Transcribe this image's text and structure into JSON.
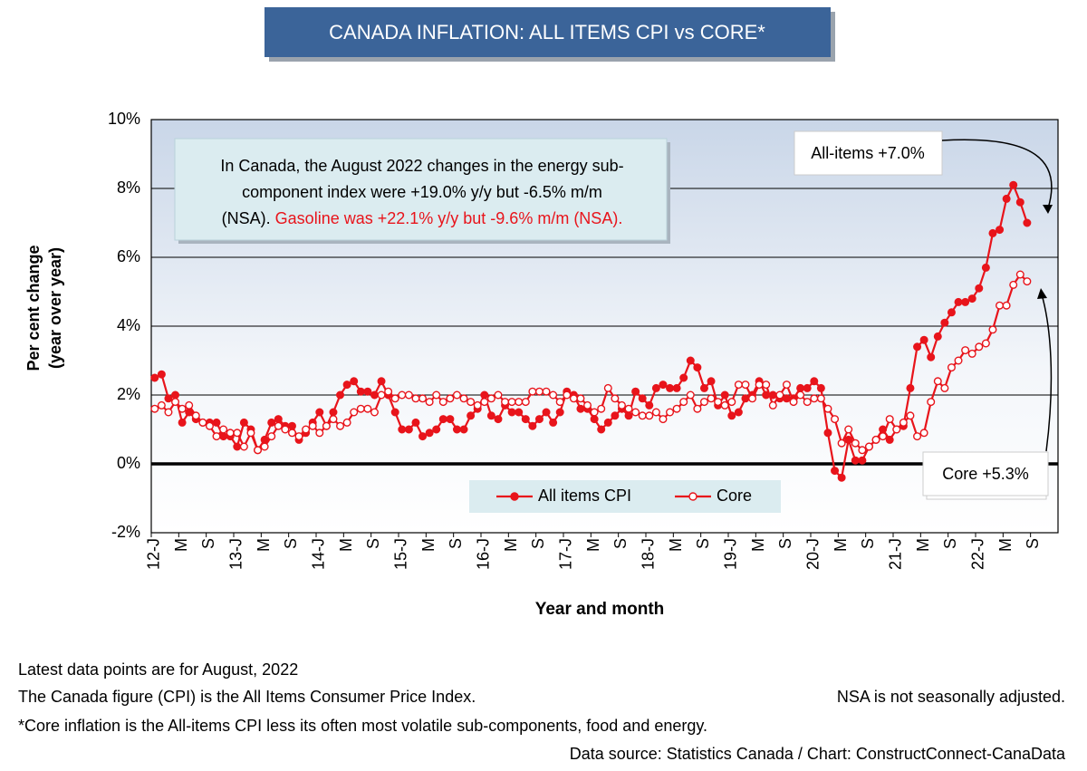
{
  "chart_data": {
    "type": "line",
    "title": "CANADA INFLATION: ALL ITEMS CPI vs CORE*",
    "ylabel": [
      "Per cent change",
      "(year over year)"
    ],
    "xlabel": "Year and month",
    "categories": [
      "12-J",
      null,
      null,
      null,
      "M",
      null,
      null,
      null,
      "S",
      null,
      null,
      null,
      "13-J",
      null,
      null,
      null,
      "M",
      null,
      null,
      null,
      "S",
      null,
      null,
      null,
      "14-J",
      null,
      null,
      null,
      "M",
      null,
      null,
      null,
      "S",
      null,
      null,
      null,
      "15-J",
      null,
      null,
      null,
      "M",
      null,
      null,
      null,
      "S",
      null,
      null,
      null,
      "16-J",
      null,
      null,
      null,
      "M",
      null,
      null,
      null,
      "S",
      null,
      null,
      null,
      "17-J",
      null,
      null,
      null,
      "M",
      null,
      null,
      null,
      "S",
      null,
      null,
      null,
      "18-J",
      null,
      null,
      null,
      "M",
      null,
      null,
      null,
      "S",
      null,
      null,
      null,
      "19-J",
      null,
      null,
      null,
      "M",
      null,
      null,
      null,
      "S",
      null,
      null,
      null,
      "20-J",
      null,
      null,
      null,
      "M",
      null,
      null,
      null,
      "S",
      null,
      null,
      null,
      "21-J",
      null,
      null,
      null,
      "M",
      null,
      null,
      null,
      "S",
      null,
      null,
      null,
      "22-J",
      null,
      null,
      null,
      "M",
      null,
      null,
      null,
      "S",
      null,
      null,
      null
    ],
    "series": [
      {
        "name": "All items CPI",
        "color": "#e8141b",
        "marker": "filled",
        "values": [
          2.5,
          2.6,
          1.9,
          2.0,
          1.2,
          1.5,
          1.3,
          1.2,
          1.2,
          1.2,
          0.8,
          0.8,
          0.5,
          1.2,
          1.0,
          0.4,
          0.7,
          1.2,
          1.3,
          1.1,
          1.1,
          0.7,
          0.9,
          1.2,
          1.5,
          1.1,
          1.5,
          2.0,
          2.3,
          2.4,
          2.1,
          2.1,
          2.0,
          2.4,
          2.0,
          1.5,
          1.0,
          1.0,
          1.2,
          0.8,
          0.9,
          1.0,
          1.3,
          1.3,
          1.0,
          1.0,
          1.4,
          1.6,
          2.0,
          1.4,
          1.3,
          1.7,
          1.5,
          1.5,
          1.3,
          1.1,
          1.3,
          1.5,
          1.2,
          1.5,
          2.1,
          2.0,
          1.6,
          1.6,
          1.3,
          1.0,
          1.2,
          1.4,
          1.6,
          1.4,
          2.1,
          1.9,
          1.7,
          2.2,
          2.3,
          2.2,
          2.2,
          2.5,
          3.0,
          2.8,
          2.2,
          2.4,
          1.7,
          2.0,
          1.4,
          1.5,
          1.9,
          2.0,
          2.4,
          2.0,
          2.0,
          1.9,
          1.9,
          1.9,
          2.2,
          2.2,
          2.4,
          2.2,
          0.9,
          -0.2,
          -0.4,
          0.7,
          0.1,
          0.1,
          0.5,
          0.7,
          1.0,
          0.7,
          1.0,
          1.1,
          2.2,
          3.4,
          3.6,
          3.1,
          3.7,
          4.1,
          4.4,
          4.7,
          4.7,
          4.8,
          5.1,
          5.7,
          6.7,
          6.8,
          7.7,
          8.1,
          7.6,
          7.0,
          null,
          null,
          null,
          null
        ]
      },
      {
        "name": "Core",
        "color": "#e8141b",
        "marker": "hollow",
        "values": [
          1.6,
          1.7,
          1.5,
          1.8,
          1.6,
          1.7,
          1.4,
          1.2,
          1.1,
          0.8,
          1.0,
          0.9,
          0.9,
          0.5,
          0.9,
          0.4,
          0.5,
          0.8,
          1.1,
          1.0,
          0.9,
          0.8,
          1.0,
          1.1,
          0.9,
          1.1,
          1.3,
          1.1,
          1.2,
          1.5,
          1.6,
          1.6,
          1.5,
          2.0,
          2.1,
          1.9,
          2.0,
          2.0,
          1.9,
          1.9,
          1.8,
          2.0,
          1.8,
          1.9,
          2.0,
          1.9,
          1.8,
          1.7,
          1.8,
          1.9,
          2.0,
          1.8,
          1.8,
          1.8,
          1.8,
          2.1,
          2.1,
          2.1,
          2.0,
          1.8,
          2.0,
          1.9,
          1.9,
          1.7,
          1.5,
          1.6,
          2.2,
          1.9,
          1.7,
          1.6,
          1.5,
          1.4,
          1.4,
          1.5,
          1.3,
          1.5,
          1.6,
          1.8,
          2.0,
          1.6,
          1.8,
          1.9,
          1.8,
          1.7,
          1.8,
          2.3,
          2.3,
          1.9,
          2.3,
          2.3,
          1.7,
          2.0,
          2.3,
          1.8,
          2.0,
          1.8,
          1.9,
          1.9,
          1.6,
          1.3,
          0.6,
          1.0,
          0.6,
          0.4,
          0.5,
          0.7,
          0.8,
          1.3,
          1.0,
          1.2,
          1.4,
          0.8,
          0.9,
          1.8,
          2.4,
          2.2,
          2.8,
          3.0,
          3.3,
          3.2,
          3.4,
          3.5,
          3.9,
          4.6,
          4.6,
          5.2,
          5.5,
          5.3,
          null,
          null,
          null,
          null
        ]
      }
    ],
    "ylim": [
      -2,
      10
    ],
    "yticks": [
      {
        "value": -2,
        "label": "-2%"
      },
      {
        "value": 0,
        "label": "0%"
      },
      {
        "value": 2,
        "label": "2%"
      },
      {
        "value": 4,
        "label": "4%"
      },
      {
        "value": 6,
        "label": "6%"
      },
      {
        "value": 8,
        "label": "8%"
      },
      {
        "value": 10,
        "label": "10%"
      }
    ],
    "grid": true,
    "legend": "bottom-center",
    "annotations": {
      "note_lines": [
        "In Canada, the August 2022 changes in the energy sub-",
        "component index were +19.0% y/y but -6.5% m/m",
        "(NSA)."
      ],
      "note_red": "Gasoline was +22.1% y/y but -9.6% m/m (NSA).",
      "all_items_callout": "All-items +7.0%",
      "core_callout": "Core +5.3%"
    },
    "footnotes": {
      "latest": "Latest data points are for August, 2022",
      "cpi_def": "The Canada figure (CPI) is the All Items Consumer Price Index.",
      "nsa": "NSA is not seasonally adjusted.",
      "core_def": "*Core inflation is the All-items CPI less its often most volatile sub-components, food and energy.",
      "source": "Data source: Statistics Canada / Chart: ConstructConnect-CanaData"
    }
  }
}
